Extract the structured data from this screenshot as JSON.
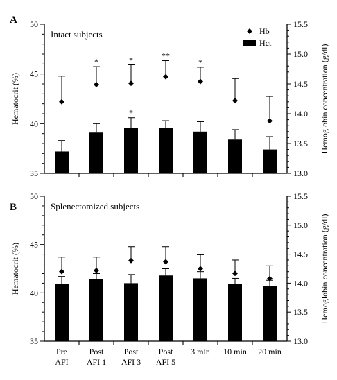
{
  "chart_data": [
    {
      "type": "bar",
      "panel_label": "A",
      "title": "Intact subjects",
      "categories": [
        [
          "Pre",
          "AFI"
        ],
        [
          "Post",
          "AFI 1"
        ],
        [
          "Post",
          "AFI 3"
        ],
        [
          "Post",
          "AFI 5"
        ],
        [
          "3 min"
        ],
        [
          "10 min"
        ],
        [
          "20 min"
        ]
      ],
      "ylabel": "Hematocrit (%)",
      "ylim": [
        35,
        50
      ],
      "yticks": [
        "35",
        "40",
        "45",
        "50"
      ],
      "y2label": "Hemoglobin concentration (g/dl)",
      "y2lim": [
        13.0,
        15.5
      ],
      "y2ticks": [
        "13.0",
        "13.5",
        "14.0",
        "14.5",
        "15.0",
        "15.5"
      ],
      "legend": {
        "position": "top-right",
        "entries": [
          "Hb",
          "Hct"
        ]
      },
      "series": [
        {
          "name": "Hct",
          "axis": "left",
          "values": [
            37.2,
            39.1,
            39.6,
            39.6,
            39.2,
            38.4,
            37.4
          ],
          "error_plus": [
            1.1,
            0.9,
            1.0,
            0.7,
            1.0,
            1.0,
            1.3
          ],
          "annotations": [
            "",
            "",
            "*",
            "",
            "",
            "",
            ""
          ]
        },
        {
          "name": "Hb",
          "axis": "right",
          "values": [
            14.2,
            14.49,
            14.51,
            14.62,
            14.54,
            14.22,
            13.88
          ],
          "error_plus": [
            0.43,
            0.3,
            0.31,
            0.27,
            0.24,
            0.37,
            0.41
          ],
          "annotations": [
            "",
            "*",
            "*",
            "**",
            "*",
            "",
            ""
          ]
        }
      ]
    },
    {
      "type": "bar",
      "panel_label": "B",
      "title": "Splenectomized subjects",
      "categories": [
        [
          "Pre",
          "AFI"
        ],
        [
          "Post",
          "AFI 1"
        ],
        [
          "Post",
          "AFI 3"
        ],
        [
          "Post",
          "AFI 5"
        ],
        [
          "3 min"
        ],
        [
          "10 min"
        ],
        [
          "20 min"
        ]
      ],
      "ylabel": "Hematocrit (%)",
      "ylim": [
        35,
        50
      ],
      "yticks": [
        "35",
        "40",
        "45",
        "50"
      ],
      "y2label": "Hemoglobin concentration (g/dl)",
      "y2lim": [
        13.0,
        15.5
      ],
      "y2ticks": [
        "13.0",
        "13.5",
        "14.0",
        "14.5",
        "15.0",
        "15.5"
      ],
      "series": [
        {
          "name": "Hct",
          "axis": "left",
          "values": [
            40.9,
            41.4,
            41.0,
            41.8,
            41.5,
            40.9,
            40.7
          ],
          "error_plus": [
            0.8,
            0.6,
            0.9,
            0.7,
            0.7,
            0.6,
            0.6
          ],
          "annotations": [
            "",
            "",
            "",
            "",
            "",
            "",
            ""
          ]
        },
        {
          "name": "Hb",
          "axis": "right",
          "values": [
            14.2,
            14.22,
            14.39,
            14.37,
            14.25,
            14.17,
            14.08
          ],
          "error_plus": [
            0.25,
            0.23,
            0.24,
            0.26,
            0.24,
            0.23,
            0.22
          ],
          "annotations": [
            "",
            "",
            "",
            "",
            "",
            "",
            ""
          ]
        }
      ]
    }
  ]
}
